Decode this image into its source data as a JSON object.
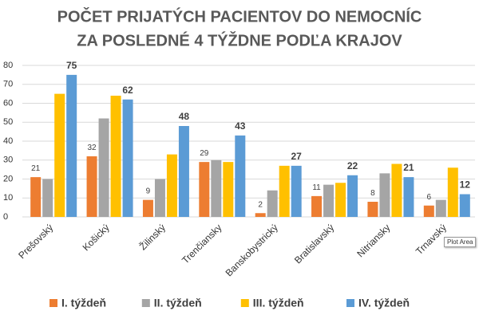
{
  "chart_data": {
    "type": "bar",
    "title_lines": [
      "POČET PRIJATÝCH PACIENTOV DO NEMOCNÍC",
      "ZA POSLEDNÉ 4 TÝŽDNE PODĽA KRAJOV"
    ],
    "categories": [
      "Prešovský",
      "Košický",
      "Žilinský",
      "Trenčiansky",
      "Banskobystrický",
      "Bratislavský",
      "Nitriansky",
      "Trnavský"
    ],
    "series": [
      {
        "name": "I. týždeň",
        "color": "#ED7D31",
        "data_labels": true,
        "values": [
          21,
          32,
          9,
          29,
          2,
          11,
          8,
          6
        ]
      },
      {
        "name": "II. týždeň",
        "color": "#A5A5A5",
        "data_labels": false,
        "values": [
          20,
          52,
          20,
          30,
          14,
          17,
          23,
          9
        ]
      },
      {
        "name": "III. týždeň",
        "color": "#FFC000",
        "data_labels": false,
        "values": [
          65,
          64,
          33,
          29,
          27,
          18,
          28,
          26
        ]
      },
      {
        "name": "IV. týždeň",
        "color": "#5B9BD5",
        "data_labels": true,
        "values": [
          75,
          62,
          48,
          43,
          27,
          22,
          21,
          12
        ]
      }
    ],
    "ylim": [
      0,
      80
    ],
    "yticks": [
      0,
      10,
      20,
      30,
      40,
      50,
      60,
      70,
      80
    ],
    "grid": true,
    "legend": "bottom"
  },
  "tooltip": "Plot Area"
}
